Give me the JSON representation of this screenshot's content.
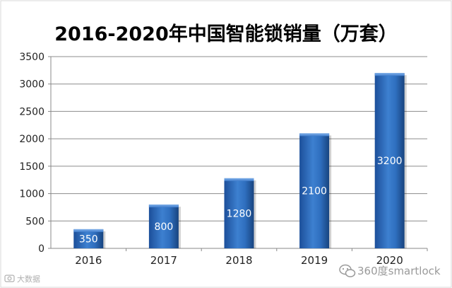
{
  "chart_data": {
    "type": "bar",
    "title": "2016-2020年中国智能锁销量（万套）",
    "xlabel": "",
    "ylabel": "",
    "categories": [
      "2016",
      "2017",
      "2018",
      "2019",
      "2020"
    ],
    "values": [
      350,
      800,
      1280,
      2100,
      3200
    ],
    "ylim": [
      0,
      3500
    ],
    "yticks": [
      0,
      500,
      1000,
      1500,
      2000,
      2500,
      3000,
      3500
    ],
    "grid": true,
    "legend": "none",
    "bar_color": "#2f6fbf"
  },
  "watermark": {
    "text": "360度smartlock",
    "icon": "wechat-icon"
  },
  "corner_mark": {
    "text": "大数据",
    "icon": "camera-icon"
  }
}
